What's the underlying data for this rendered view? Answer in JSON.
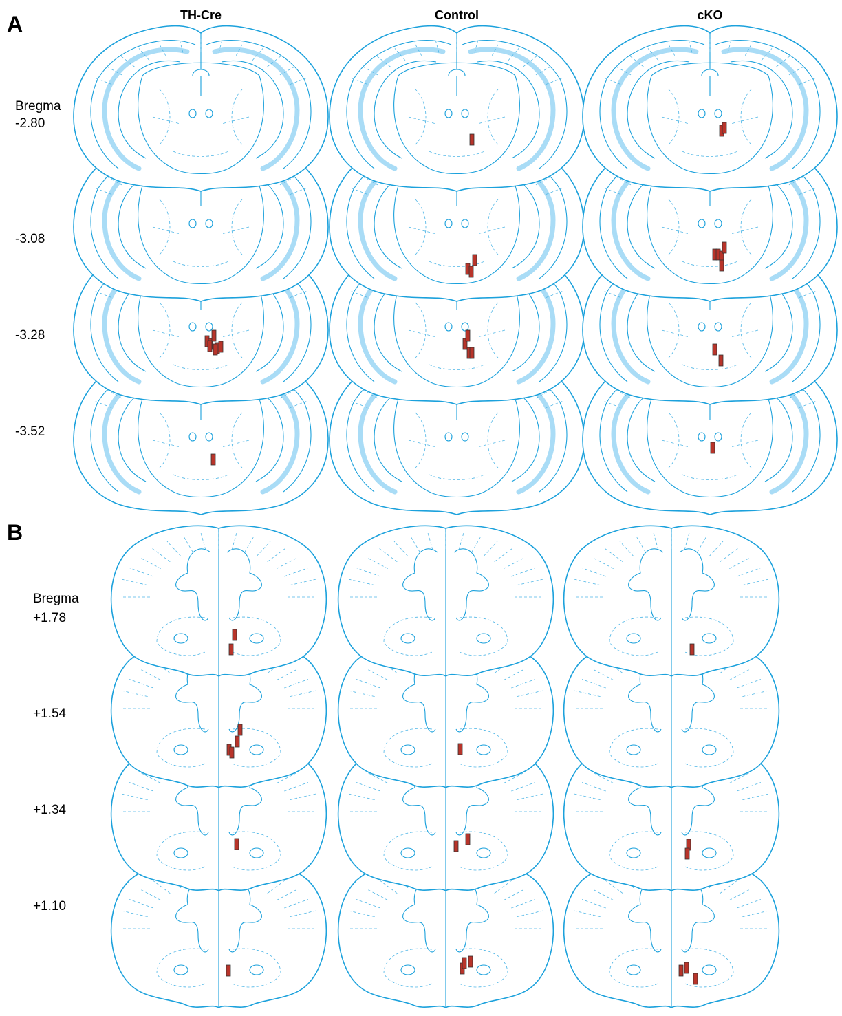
{
  "panel_a": {
    "label": "A",
    "columns": [
      "TH-Cre",
      "Control",
      "cKO"
    ],
    "levels": [
      [
        "Bregma",
        "-2.80"
      ],
      [
        "-3.08"
      ],
      [
        "-3.28"
      ],
      [
        "-3.52"
      ]
    ]
  },
  "panel_b": {
    "label": "B",
    "levels": [
      [
        "Bregma",
        "+1.78"
      ],
      [
        "+1.54"
      ],
      [
        "+1.34"
      ],
      [
        "+1.10"
      ]
    ]
  }
}
